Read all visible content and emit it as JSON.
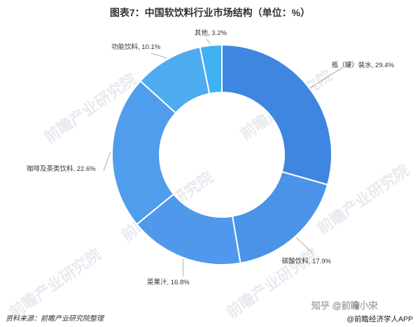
{
  "chart_data": {
    "type": "pie",
    "title": "图表7：中国软饮料行业市场结构（单位：%）",
    "slices": [
      {
        "label": "瓶（罐）装水, 29.4%",
        "value": 29.4,
        "color": "#3f86e0"
      },
      {
        "label": "碳酸饮料, 17.9%",
        "value": 17.9,
        "color": "#4a93e8"
      },
      {
        "label": "菜果汁, 16.8%",
        "value": 16.8,
        "color": "#4f98ec"
      },
      {
        "label": "咖啡及茶类饮料, 22.6%",
        "value": 22.6,
        "color": "#519ded"
      },
      {
        "label": "功能饮料, 10.1%",
        "value": 10.1,
        "color": "#4dabf0"
      },
      {
        "label": "其他, 3.2%",
        "value": 3.2,
        "color": "#3fb0f2"
      }
    ],
    "legend": "none",
    "donut": true
  },
  "source": "资料来源：前瞻产业研究院整理",
  "watermark": "前瞻产业研究院",
  "overlay": {
    "zhihu": "知乎 @前瞻小宋",
    "credit": "@前瞻经济学人APP"
  }
}
